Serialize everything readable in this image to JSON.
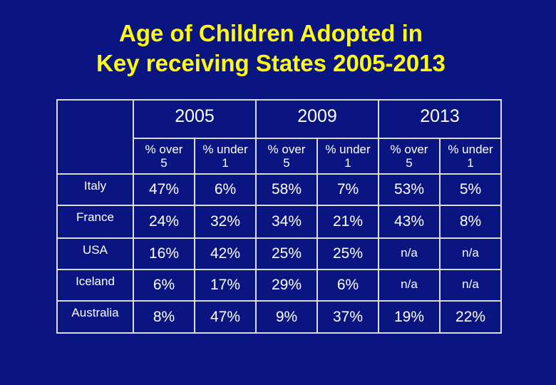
{
  "title": {
    "line1": "Age  of Children Adopted in",
    "line2": "Key receiving States  2005-2013"
  },
  "table": {
    "years": [
      "2005",
      "2009",
      "2013"
    ],
    "subheaders": [
      {
        "line1": "% over",
        "line2": "5"
      },
      {
        "line1": "% under",
        "line2": "1"
      },
      {
        "line1": "% over",
        "line2": "5"
      },
      {
        "line1": "% under",
        "line2": "1"
      },
      {
        "line1": "% over",
        "line2": "5"
      },
      {
        "line1": "% under",
        "line2": "1"
      }
    ],
    "rows": [
      {
        "country": "Italy",
        "values": [
          "47%",
          "6%",
          "58%",
          "7%",
          "53%",
          "5%"
        ]
      },
      {
        "country": "France",
        "values": [
          "24%",
          "32%",
          "34%",
          "21%",
          "43%",
          "8%"
        ]
      },
      {
        "country": "USA",
        "values": [
          "16%",
          "42%",
          "25%",
          "25%",
          "n/a",
          "n/a"
        ]
      },
      {
        "country": "Iceland",
        "values": [
          "6%",
          "17%",
          "29%",
          "6%",
          "n/a",
          "n/a"
        ]
      },
      {
        "country": "Australia",
        "values": [
          "8%",
          "47%",
          "9%",
          "37%",
          "19%",
          "22%"
        ]
      }
    ]
  }
}
